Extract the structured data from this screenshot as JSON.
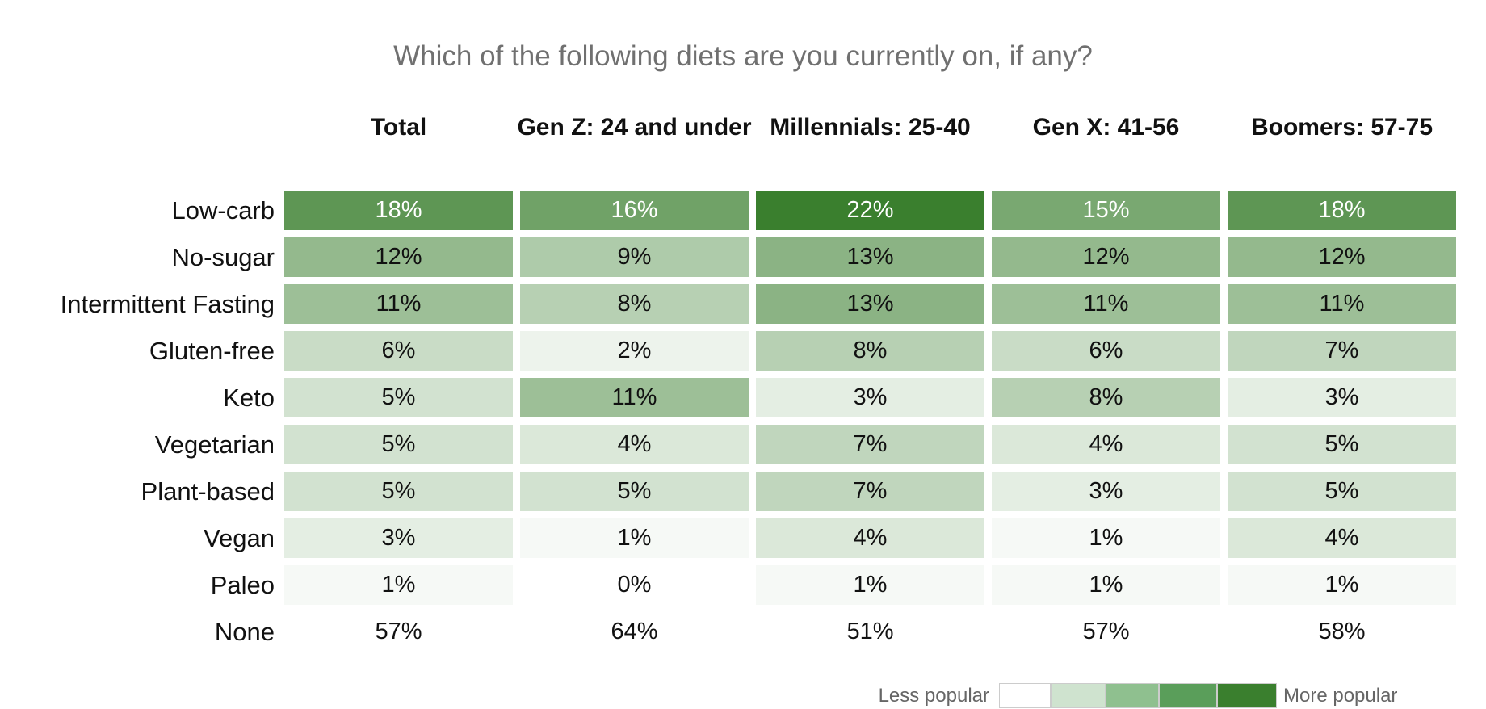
{
  "chart_data": {
    "type": "heatmap",
    "title": "Which of the following diets are you currently on, if any?",
    "columns": [
      "Total",
      "Gen Z: 24 and under",
      "Millennials: 25-40",
      "Gen X: 41-56",
      "Boomers: 57-75"
    ],
    "rows": [
      "Low-carb",
      "No-sugar",
      "Intermittent Fasting",
      "Gluten-free",
      "Keto",
      "Vegetarian",
      "Plant-based",
      "Vegan",
      "Paleo"
    ],
    "values": [
      [
        18,
        16,
        22,
        15,
        18
      ],
      [
        12,
        9,
        13,
        12,
        12
      ],
      [
        11,
        8,
        13,
        11,
        11
      ],
      [
        6,
        2,
        8,
        6,
        7
      ],
      [
        5,
        11,
        3,
        8,
        3
      ],
      [
        5,
        4,
        7,
        4,
        5
      ],
      [
        5,
        5,
        7,
        3,
        5
      ],
      [
        3,
        1,
        4,
        1,
        4
      ],
      [
        1,
        0,
        1,
        1,
        1
      ]
    ],
    "value_labels": [
      [
        "18%",
        "16%",
        "22%",
        "15%",
        "18%"
      ],
      [
        "12%",
        "9%",
        "13%",
        "12%",
        "12%"
      ],
      [
        "11%",
        "8%",
        "13%",
        "11%",
        "11%"
      ],
      [
        "6%",
        "2%",
        "8%",
        "6%",
        "7%"
      ],
      [
        "5%",
        "11%",
        "3%",
        "8%",
        "3%"
      ],
      [
        "5%",
        "4%",
        "7%",
        "4%",
        "5%"
      ],
      [
        "5%",
        "5%",
        "7%",
        "3%",
        "5%"
      ],
      [
        "3%",
        "1%",
        "4%",
        "1%",
        "4%"
      ],
      [
        "1%",
        "0%",
        "1%",
        "1%",
        "1%"
      ]
    ],
    "extra_row": {
      "name": "None",
      "values": [
        57,
        64,
        51,
        57,
        58
      ],
      "value_labels": [
        "57%",
        "64%",
        "51%",
        "57%",
        "58%"
      ]
    },
    "colors": [
      "#ffffff",
      "#3a7f2e"
    ],
    "legend": {
      "low": "Less popular",
      "high": "More popular",
      "colors": [
        "#ffffff",
        "#cfe3cf",
        "#8fc08f",
        "#5a9e5a",
        "#3a7f2e"
      ]
    }
  }
}
